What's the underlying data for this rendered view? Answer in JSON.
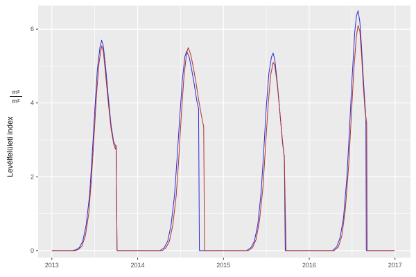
{
  "chart_data": {
    "type": "line",
    "title": "",
    "xlabel": "",
    "ylabel": "Levélfelületi index",
    "ylabel_fraction": {
      "numerator": "m²",
      "denominator": "m²"
    },
    "x_ticks": [
      2013,
      2014,
      2015,
      2016,
      2017
    ],
    "y_ticks": [
      0,
      2,
      4,
      6
    ],
    "x_minor_ticks": [
      2013.5,
      2014.5,
      2015.5,
      2016.5
    ],
    "y_minor_ticks": [
      1,
      3,
      5
    ],
    "xlim": [
      2012.84,
      2017.18
    ],
    "ylim": [
      -0.19,
      6.64
    ],
    "panel_bg": "#ebebeb",
    "grid_color": "#ffffff",
    "tick_color": "#333333",
    "tick_label_color": "#4d4d4d",
    "legend_position": "none",
    "series": [
      {
        "name": "blue",
        "color": "#2b2bd5",
        "points": [
          [
            2013.0,
            0
          ],
          [
            2013.24,
            0
          ],
          [
            2013.28,
            0.02
          ],
          [
            2013.32,
            0.08
          ],
          [
            2013.36,
            0.25
          ],
          [
            2013.4,
            0.7
          ],
          [
            2013.44,
            1.5
          ],
          [
            2013.47,
            2.6
          ],
          [
            2013.5,
            3.8
          ],
          [
            2013.53,
            4.9
          ],
          [
            2013.56,
            5.5
          ],
          [
            2013.58,
            5.7
          ],
          [
            2013.6,
            5.55
          ],
          [
            2013.63,
            4.9
          ],
          [
            2013.66,
            4.1
          ],
          [
            2013.69,
            3.4
          ],
          [
            2013.72,
            2.95
          ],
          [
            2013.75,
            2.8
          ],
          [
            2013.76,
            0
          ],
          [
            2014.0,
            0
          ],
          [
            2014.26,
            0
          ],
          [
            2014.31,
            0.08
          ],
          [
            2014.35,
            0.25
          ],
          [
            2014.39,
            0.7
          ],
          [
            2014.43,
            1.5
          ],
          [
            2014.46,
            2.5
          ],
          [
            2014.49,
            3.6
          ],
          [
            2014.52,
            4.6
          ],
          [
            2014.55,
            5.25
          ],
          [
            2014.57,
            5.4
          ],
          [
            2014.6,
            5.25
          ],
          [
            2014.63,
            4.9
          ],
          [
            2014.66,
            4.5
          ],
          [
            2014.69,
            4.05
          ],
          [
            2014.71,
            3.85
          ],
          [
            2014.72,
            0
          ],
          [
            2015.0,
            0
          ],
          [
            2015.27,
            0
          ],
          [
            2015.32,
            0.08
          ],
          [
            2015.36,
            0.25
          ],
          [
            2015.4,
            0.7
          ],
          [
            2015.44,
            1.6
          ],
          [
            2015.47,
            2.7
          ],
          [
            2015.5,
            3.9
          ],
          [
            2015.53,
            4.8
          ],
          [
            2015.56,
            5.25
          ],
          [
            2015.58,
            5.35
          ],
          [
            2015.6,
            5.15
          ],
          [
            2015.63,
            4.5
          ],
          [
            2015.66,
            3.7
          ],
          [
            2015.69,
            2.9
          ],
          [
            2015.71,
            2.55
          ],
          [
            2015.72,
            0
          ],
          [
            2016.0,
            0
          ],
          [
            2016.27,
            0
          ],
          [
            2016.32,
            0.1
          ],
          [
            2016.36,
            0.35
          ],
          [
            2016.4,
            0.9
          ],
          [
            2016.44,
            2.0
          ],
          [
            2016.47,
            3.3
          ],
          [
            2016.5,
            4.7
          ],
          [
            2016.53,
            5.9
          ],
          [
            2016.55,
            6.35
          ],
          [
            2016.57,
            6.5
          ],
          [
            2016.59,
            6.2
          ],
          [
            2016.61,
            5.5
          ],
          [
            2016.63,
            4.7
          ],
          [
            2016.65,
            3.95
          ],
          [
            2016.66,
            3.6
          ],
          [
            2016.665,
            0
          ],
          [
            2016.98,
            0
          ]
        ]
      },
      {
        "name": "red",
        "color": "#b2302a",
        "points": [
          [
            2013.0,
            0
          ],
          [
            2013.27,
            0
          ],
          [
            2013.31,
            0.03
          ],
          [
            2013.35,
            0.12
          ],
          [
            2013.39,
            0.4
          ],
          [
            2013.43,
            1.0
          ],
          [
            2013.46,
            1.9
          ],
          [
            2013.49,
            3.0
          ],
          [
            2013.52,
            4.2
          ],
          [
            2013.55,
            5.1
          ],
          [
            2013.58,
            5.55
          ],
          [
            2013.6,
            5.4
          ],
          [
            2013.63,
            4.7
          ],
          [
            2013.66,
            3.95
          ],
          [
            2013.69,
            3.3
          ],
          [
            2013.72,
            2.9
          ],
          [
            2013.74,
            2.75
          ],
          [
            2013.75,
            2.85
          ],
          [
            2013.76,
            0
          ],
          [
            2014.0,
            0
          ],
          [
            2014.29,
            0
          ],
          [
            2014.33,
            0.08
          ],
          [
            2014.37,
            0.25
          ],
          [
            2014.41,
            0.7
          ],
          [
            2014.45,
            1.5
          ],
          [
            2014.48,
            2.5
          ],
          [
            2014.51,
            3.7
          ],
          [
            2014.54,
            4.7
          ],
          [
            2014.57,
            5.35
          ],
          [
            2014.59,
            5.5
          ],
          [
            2014.62,
            5.3
          ],
          [
            2014.65,
            4.95
          ],
          [
            2014.68,
            4.55
          ],
          [
            2014.71,
            4.1
          ],
          [
            2014.74,
            3.7
          ],
          [
            2014.77,
            3.35
          ],
          [
            2014.78,
            0
          ],
          [
            2015.0,
            0
          ],
          [
            2015.29,
            0
          ],
          [
            2015.34,
            0.08
          ],
          [
            2015.38,
            0.3
          ],
          [
            2015.42,
            0.8
          ],
          [
            2015.46,
            1.7
          ],
          [
            2015.49,
            2.8
          ],
          [
            2015.52,
            3.9
          ],
          [
            2015.55,
            4.75
          ],
          [
            2015.58,
            5.1
          ],
          [
            2015.6,
            5.0
          ],
          [
            2015.63,
            4.45
          ],
          [
            2015.66,
            3.7
          ],
          [
            2015.69,
            2.95
          ],
          [
            2015.71,
            2.5
          ],
          [
            2015.73,
            0
          ],
          [
            2016.0,
            0
          ],
          [
            2016.29,
            0
          ],
          [
            2016.34,
            0.1
          ],
          [
            2016.38,
            0.4
          ],
          [
            2016.42,
            1.1
          ],
          [
            2016.46,
            2.3
          ],
          [
            2016.49,
            3.6
          ],
          [
            2016.52,
            4.9
          ],
          [
            2016.55,
            5.8
          ],
          [
            2016.57,
            6.1
          ],
          [
            2016.59,
            5.95
          ],
          [
            2016.61,
            5.3
          ],
          [
            2016.63,
            4.5
          ],
          [
            2016.65,
            3.8
          ],
          [
            2016.67,
            3.45
          ],
          [
            2016.675,
            0
          ],
          [
            2017.0,
            0
          ]
        ]
      }
    ]
  }
}
